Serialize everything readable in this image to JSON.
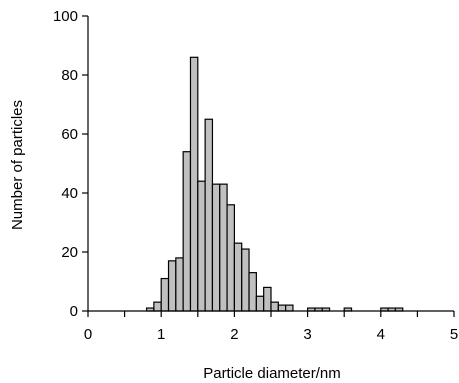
{
  "chart_data": {
    "type": "bar",
    "title": "",
    "xlabel": "Particle diameter/nm",
    "ylabel": "Number of particles",
    "xlim": [
      0,
      5
    ],
    "ylim": [
      0,
      100
    ],
    "xticks": [
      "0",
      "1",
      "2",
      "3",
      "4",
      "5"
    ],
    "yticks": [
      "0",
      "20",
      "40",
      "60",
      "80",
      "100"
    ],
    "grid": false,
    "bar_color": "#c0c0c0",
    "bar_edge_color": "#000000",
    "bin_width": 0.1,
    "bins": [
      {
        "x": 0.8,
        "value": 1
      },
      {
        "x": 0.9,
        "value": 3
      },
      {
        "x": 1.0,
        "value": 11
      },
      {
        "x": 1.1,
        "value": 17
      },
      {
        "x": 1.2,
        "value": 18
      },
      {
        "x": 1.3,
        "value": 54
      },
      {
        "x": 1.4,
        "value": 86
      },
      {
        "x": 1.5,
        "value": 44
      },
      {
        "x": 1.6,
        "value": 65
      },
      {
        "x": 1.7,
        "value": 43
      },
      {
        "x": 1.8,
        "value": 43
      },
      {
        "x": 1.9,
        "value": 36
      },
      {
        "x": 2.0,
        "value": 23
      },
      {
        "x": 2.1,
        "value": 21
      },
      {
        "x": 2.2,
        "value": 13
      },
      {
        "x": 2.3,
        "value": 5
      },
      {
        "x": 2.4,
        "value": 8
      },
      {
        "x": 2.5,
        "value": 3
      },
      {
        "x": 2.6,
        "value": 2
      },
      {
        "x": 2.7,
        "value": 2
      },
      {
        "x": 3.0,
        "value": 1
      },
      {
        "x": 3.1,
        "value": 1
      },
      {
        "x": 3.2,
        "value": 1
      },
      {
        "x": 3.5,
        "value": 1
      },
      {
        "x": 4.0,
        "value": 1
      },
      {
        "x": 4.1,
        "value": 1
      },
      {
        "x": 4.2,
        "value": 1
      }
    ]
  }
}
